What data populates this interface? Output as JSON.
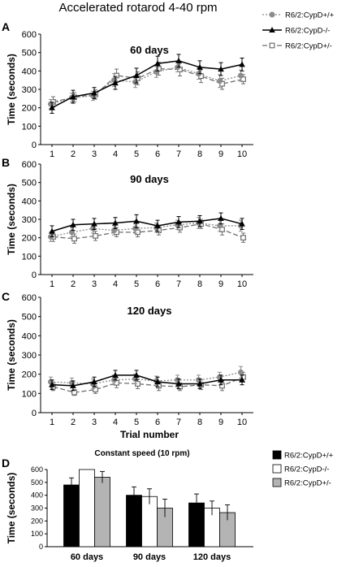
{
  "title": "Accelerated rotarod 4-40 rpm",
  "legend_top": [
    {
      "label": "R6/2:CypD+/+",
      "color": "#8c8c8c",
      "marker": "circle",
      "dash": "2,2"
    },
    {
      "label": "R6/2:CypD-/-",
      "color": "#000000",
      "marker": "triangle",
      "dash": ""
    },
    {
      "label": "R6/2:CypD+/-",
      "color": "#6e6e6e",
      "marker": "square",
      "dash": "6,3"
    }
  ],
  "legend_bar": [
    {
      "label": "R6/2:CypD+/+",
      "fill": "#000000"
    },
    {
      "label": "R6/2:CypD-/-",
      "fill": "#ffffff"
    },
    {
      "label": "R6/2:CypD+/-",
      "fill": "#b4b4b4"
    }
  ],
  "chart_data": [
    {
      "type": "line",
      "panel": "A",
      "title": "60 days",
      "xlabel": "",
      "ylabel": "Time (seconds)",
      "ylim": [
        0,
        600
      ],
      "yticks": [
        0,
        100,
        200,
        300,
        400,
        500,
        600
      ],
      "x": [
        1,
        2,
        3,
        4,
        5,
        6,
        7,
        8,
        9,
        10
      ],
      "series": [
        {
          "name": "R6/2:CypD+/+",
          "values": [
            220,
            255,
            265,
            350,
            340,
            395,
            420,
            385,
            345,
            375
          ],
          "err": [
            25,
            25,
            25,
            35,
            30,
            30,
            25,
            30,
            35,
            30
          ]
        },
        {
          "name": "R6/2:CypD-/-",
          "values": [
            200,
            260,
            280,
            335,
            375,
            440,
            455,
            420,
            410,
            435
          ],
          "err": [
            30,
            35,
            30,
            35,
            40,
            40,
            35,
            35,
            35,
            35
          ]
        },
        {
          "name": "R6/2:CypD+/-",
          "values": [
            232,
            257,
            272,
            375,
            360,
            412,
            408,
            372,
            330,
            355
          ],
          "err": [
            28,
            25,
            25,
            35,
            35,
            35,
            35,
            35,
            30,
            25
          ]
        }
      ]
    },
    {
      "type": "line",
      "panel": "B",
      "title": "90 days",
      "xlabel": "",
      "ylabel": "Time (seconds)",
      "ylim": [
        0,
        600
      ],
      "yticks": [
        0,
        100,
        200,
        300,
        400,
        500,
        600
      ],
      "x": [
        1,
        2,
        3,
        4,
        5,
        6,
        7,
        8,
        9,
        10
      ],
      "series": [
        {
          "name": "R6/2:CypD+/+",
          "values": [
            205,
            230,
            250,
            240,
            250,
            255,
            270,
            280,
            265,
            265
          ],
          "err": [
            25,
            25,
            25,
            25,
            25,
            25,
            25,
            30,
            30,
            30
          ]
        },
        {
          "name": "R6/2:CypD-/-",
          "values": [
            235,
            270,
            275,
            280,
            290,
            265,
            285,
            290,
            305,
            275
          ],
          "err": [
            30,
            30,
            30,
            30,
            35,
            30,
            30,
            30,
            30,
            30
          ]
        },
        {
          "name": "R6/2:CypD+/-",
          "values": [
            205,
            195,
            210,
            230,
            230,
            240,
            255,
            275,
            245,
            200
          ],
          "err": [
            25,
            25,
            25,
            25,
            25,
            25,
            25,
            25,
            30,
            25
          ]
        }
      ]
    },
    {
      "type": "line",
      "panel": "C",
      "title": "120 days",
      "xlabel": "Trial number",
      "ylabel": "Time (seconds)",
      "ylim": [
        0,
        600
      ],
      "yticks": [
        0,
        100,
        200,
        300,
        400,
        500,
        600
      ],
      "x": [
        1,
        2,
        3,
        4,
        5,
        6,
        7,
        8,
        9,
        10
      ],
      "series": [
        {
          "name": "R6/2:CypD+/+",
          "values": [
            160,
            155,
            150,
            170,
            175,
            165,
            170,
            170,
            185,
            210
          ],
          "err": [
            25,
            25,
            25,
            25,
            25,
            25,
            25,
            25,
            25,
            30
          ]
        },
        {
          "name": "R6/2:CypD-/-",
          "values": [
            145,
            140,
            160,
            195,
            195,
            160,
            150,
            150,
            170,
            170
          ],
          "err": [
            25,
            25,
            25,
            25,
            25,
            25,
            25,
            25,
            25,
            25
          ]
        },
        {
          "name": "R6/2:CypD+/-",
          "values": [
            135,
            105,
            120,
            155,
            150,
            140,
            135,
            145,
            140,
            185
          ],
          "err": [
            20,
            15,
            20,
            25,
            25,
            25,
            20,
            25,
            25,
            25
          ]
        }
      ]
    },
    {
      "type": "bar",
      "panel": "D",
      "title": "Constant speed (10 rpm)",
      "xlabel": "",
      "ylabel": "Time (seconds)",
      "ylim": [
        0,
        600
      ],
      "yticks": [
        0,
        100,
        200,
        300,
        400,
        500,
        600
      ],
      "categories": [
        "60 days",
        "90 days",
        "120 days"
      ],
      "series": [
        {
          "name": "R6/2:CypD+/+",
          "values": [
            480,
            400,
            340
          ],
          "err": [
            55,
            65,
            70
          ]
        },
        {
          "name": "R6/2:CypD-/-",
          "values": [
            600,
            390,
            300
          ],
          "err": [
            0,
            60,
            55
          ]
        },
        {
          "name": "R6/2:CypD+/-",
          "values": [
            540,
            300,
            265
          ],
          "err": [
            45,
            70,
            60
          ]
        }
      ]
    }
  ]
}
